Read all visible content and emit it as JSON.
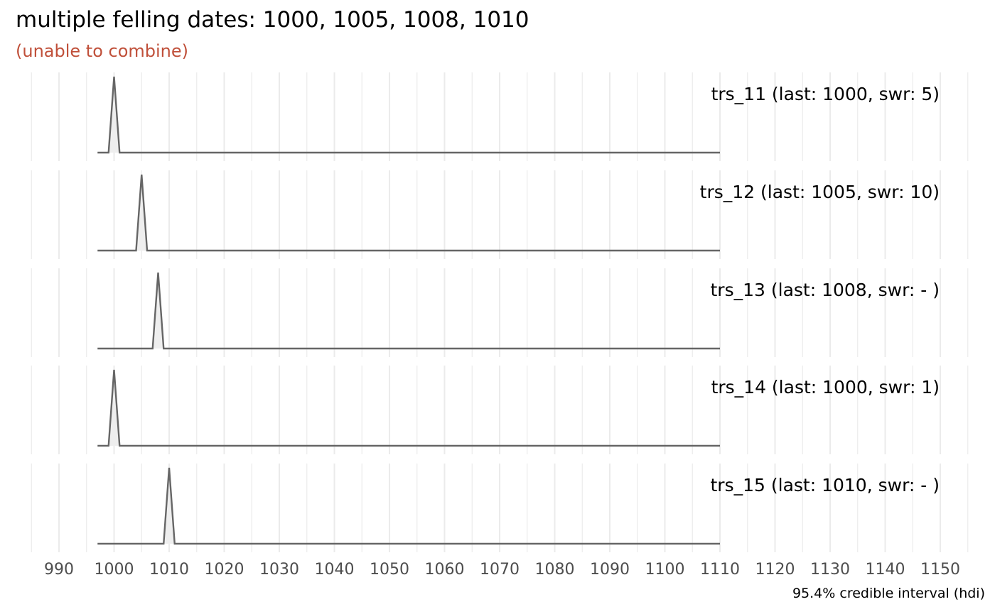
{
  "chart_data": {
    "type": "area",
    "title": "multiple felling dates: 1000, 1005, 1008, 1010",
    "subtitle": "(unable to combine)",
    "caption": "95.4% credible interval (hdi)",
    "xlim": [
      985,
      1155
    ],
    "x_ticks": [
      990,
      1000,
      1010,
      1020,
      1030,
      1040,
      1050,
      1060,
      1070,
      1080,
      1090,
      1100,
      1110,
      1120,
      1130,
      1140,
      1150
    ],
    "x_range": [
      997,
      1110
    ],
    "grid": true,
    "series": [
      {
        "label": "trs_11 (last: 1000, swr: 5)",
        "peak": 1000
      },
      {
        "label": "trs_12 (last: 1005, swr: 10)",
        "peak": 1005
      },
      {
        "label": "trs_13 (last: 1008, swr: - )",
        "peak": 1008
      },
      {
        "label": "trs_14 (last: 1000, swr: 1)",
        "peak": 1000
      },
      {
        "label": "trs_15 (last: 1010, swr: - )",
        "peak": 1010
      }
    ],
    "colors": {
      "line": "#666666",
      "fill": "#eeeeee",
      "grid": "#ebebeb",
      "subtitle": "#c0503a"
    }
  }
}
